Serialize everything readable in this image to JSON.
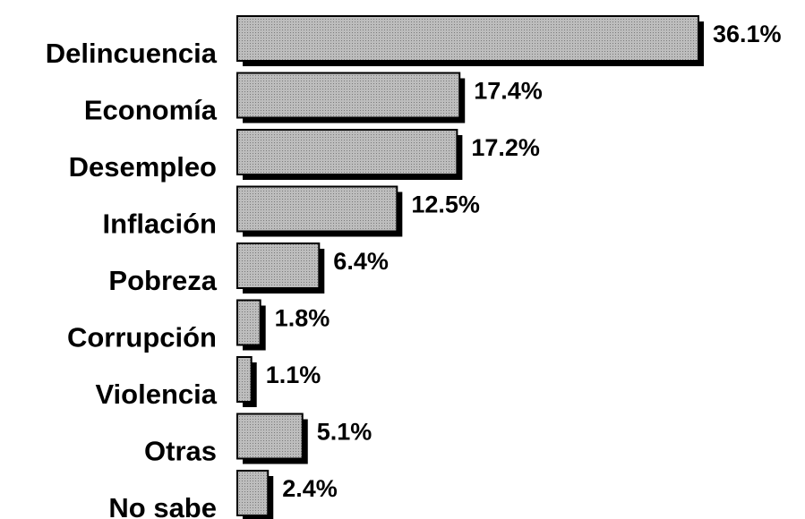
{
  "chart_data": {
    "type": "bar",
    "orientation": "horizontal",
    "categories": [
      "Delincuencia",
      "Economía",
      "Desempleo",
      "Inflación",
      "Pobreza",
      "Corrupción",
      "Violencia",
      "Otras",
      "No sabe"
    ],
    "values": [
      36.1,
      17.4,
      17.2,
      12.5,
      6.4,
      1.8,
      1.1,
      5.1,
      2.4
    ],
    "value_labels": [
      "36.1%",
      "17.4%",
      "17.2%",
      "12.5%",
      "6.4%",
      "1.8%",
      "1.1%",
      "5.1%",
      "2.4%"
    ],
    "color": "#ababab"
  }
}
